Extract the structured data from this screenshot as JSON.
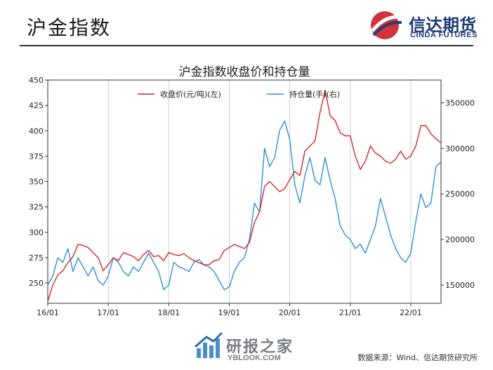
{
  "page": {
    "title": "沪金指数",
    "source": "数据来源：Wind、信达期货研究所"
  },
  "logo": {
    "cn": "信达期货",
    "en": "CINDA FUTURES"
  },
  "watermark": {
    "cn": "研报之家",
    "en": "YBLOOK.COM"
  },
  "colors": {
    "red": "#d62728",
    "blue": "#2e8fd8",
    "logo_blue": "#1f3e78",
    "logo_red": "#d0343a"
  },
  "chart_data": {
    "type": "line",
    "title": "沪金指数收盘价和持仓量",
    "x_ticks": [
      "16/01",
      "17/01",
      "18/01",
      "19/01",
      "20/01",
      "21/01",
      "22/01"
    ],
    "x_range": [
      "2016/01",
      "2022/07"
    ],
    "grid": {
      "vertical": true,
      "horizontal": false
    },
    "legend_position": "top-center",
    "y_left": {
      "min": 230,
      "max": 450,
      "ticks": [
        250,
        275,
        300,
        325,
        350,
        375,
        400,
        425,
        450
      ]
    },
    "y_right": {
      "min": 130000,
      "max": 375000,
      "ticks": [
        "150000",
        "200000",
        "250000",
        "300000",
        "350000"
      ]
    },
    "series": [
      {
        "name": "收盘价(元/吨)(左)",
        "axis": "left",
        "color": "#d62728",
        "points": [
          [
            "2016/01",
            232
          ],
          [
            "2016/02",
            248
          ],
          [
            "2016/03",
            258
          ],
          [
            "2016/04",
            262
          ],
          [
            "2016/05",
            270
          ],
          [
            "2016/06",
            276
          ],
          [
            "2016/07",
            288
          ],
          [
            "2016/08",
            287
          ],
          [
            "2016/09",
            285
          ],
          [
            "2016/10",
            280
          ],
          [
            "2016/11",
            275
          ],
          [
            "2016/12",
            262
          ],
          [
            "2017/01",
            268
          ],
          [
            "2017/02",
            275
          ],
          [
            "2017/03",
            272
          ],
          [
            "2017/04",
            280
          ],
          [
            "2017/05",
            278
          ],
          [
            "2017/06",
            276
          ],
          [
            "2017/07",
            272
          ],
          [
            "2017/08",
            278
          ],
          [
            "2017/09",
            282
          ],
          [
            "2017/10",
            276
          ],
          [
            "2017/11",
            277
          ],
          [
            "2017/12",
            272
          ],
          [
            "2018/01",
            280
          ],
          [
            "2018/02",
            278
          ],
          [
            "2018/03",
            277
          ],
          [
            "2018/04",
            279
          ],
          [
            "2018/05",
            275
          ],
          [
            "2018/06",
            272
          ],
          [
            "2018/07",
            270
          ],
          [
            "2018/08",
            268
          ],
          [
            "2018/09",
            268
          ],
          [
            "2018/10",
            272
          ],
          [
            "2018/11",
            273
          ],
          [
            "2018/12",
            282
          ],
          [
            "2019/01",
            285
          ],
          [
            "2019/02",
            288
          ],
          [
            "2019/03",
            286
          ],
          [
            "2019/04",
            284
          ],
          [
            "2019/05",
            290
          ],
          [
            "2019/06",
            310
          ],
          [
            "2019/07",
            320
          ],
          [
            "2019/08",
            345
          ],
          [
            "2019/09",
            350
          ],
          [
            "2019/10",
            345
          ],
          [
            "2019/11",
            340
          ],
          [
            "2019/12",
            343
          ],
          [
            "2020/01",
            352
          ],
          [
            "2020/02",
            360
          ],
          [
            "2020/03",
            356
          ],
          [
            "2020/04",
            380
          ],
          [
            "2020/05",
            385
          ],
          [
            "2020/06",
            390
          ],
          [
            "2020/07",
            418
          ],
          [
            "2020/08",
            440
          ],
          [
            "2020/09",
            415
          ],
          [
            "2020/10",
            410
          ],
          [
            "2020/11",
            398
          ],
          [
            "2020/12",
            395
          ],
          [
            "2021/01",
            395
          ],
          [
            "2021/02",
            375
          ],
          [
            "2021/03",
            362
          ],
          [
            "2021/04",
            370
          ],
          [
            "2021/05",
            385
          ],
          [
            "2021/06",
            378
          ],
          [
            "2021/07",
            375
          ],
          [
            "2021/08",
            370
          ],
          [
            "2021/09",
            368
          ],
          [
            "2021/10",
            372
          ],
          [
            "2021/11",
            380
          ],
          [
            "2021/12",
            372
          ],
          [
            "2022/01",
            375
          ],
          [
            "2022/02",
            385
          ],
          [
            "2022/03",
            405
          ],
          [
            "2022/04",
            405
          ],
          [
            "2022/05",
            397
          ],
          [
            "2022/06",
            392
          ],
          [
            "2022/07",
            388
          ]
        ]
      },
      {
        "name": "持仓量(手)(右)",
        "axis": "right",
        "color": "#2e8fd8",
        "points": [
          [
            "2016/01",
            150000
          ],
          [
            "2016/02",
            160000
          ],
          [
            "2016/03",
            180000
          ],
          [
            "2016/04",
            175000
          ],
          [
            "2016/05",
            190000
          ],
          [
            "2016/06",
            165000
          ],
          [
            "2016/07",
            180000
          ],
          [
            "2016/08",
            170000
          ],
          [
            "2016/09",
            160000
          ],
          [
            "2016/10",
            170000
          ],
          [
            "2016/11",
            155000
          ],
          [
            "2016/12",
            150000
          ],
          [
            "2017/01",
            160000
          ],
          [
            "2017/02",
            180000
          ],
          [
            "2017/03",
            175000
          ],
          [
            "2017/04",
            165000
          ],
          [
            "2017/05",
            160000
          ],
          [
            "2017/06",
            170000
          ],
          [
            "2017/07",
            165000
          ],
          [
            "2017/08",
            175000
          ],
          [
            "2017/09",
            185000
          ],
          [
            "2017/10",
            175000
          ],
          [
            "2017/11",
            165000
          ],
          [
            "2017/12",
            145000
          ],
          [
            "2018/01",
            150000
          ],
          [
            "2018/02",
            175000
          ],
          [
            "2018/03",
            170000
          ],
          [
            "2018/04",
            168000
          ],
          [
            "2018/05",
            165000
          ],
          [
            "2018/06",
            175000
          ],
          [
            "2018/07",
            178000
          ],
          [
            "2018/08",
            172000
          ],
          [
            "2018/09",
            170000
          ],
          [
            "2018/10",
            165000
          ],
          [
            "2018/11",
            155000
          ],
          [
            "2018/12",
            145000
          ],
          [
            "2019/01",
            148000
          ],
          [
            "2019/02",
            165000
          ],
          [
            "2019/03",
            175000
          ],
          [
            "2019/04",
            180000
          ],
          [
            "2019/05",
            200000
          ],
          [
            "2019/06",
            240000
          ],
          [
            "2019/07",
            230000
          ],
          [
            "2019/08",
            300000
          ],
          [
            "2019/09",
            280000
          ],
          [
            "2019/10",
            290000
          ],
          [
            "2019/11",
            320000
          ],
          [
            "2019/12",
            330000
          ],
          [
            "2020/01",
            310000
          ],
          [
            "2020/02",
            260000
          ],
          [
            "2020/03",
            240000
          ],
          [
            "2020/04",
            270000
          ],
          [
            "2020/05",
            290000
          ],
          [
            "2020/06",
            265000
          ],
          [
            "2020/07",
            260000
          ],
          [
            "2020/08",
            290000
          ],
          [
            "2020/09",
            265000
          ],
          [
            "2020/10",
            245000
          ],
          [
            "2020/11",
            215000
          ],
          [
            "2020/12",
            205000
          ],
          [
            "2021/01",
            200000
          ],
          [
            "2021/02",
            190000
          ],
          [
            "2021/03",
            195000
          ],
          [
            "2021/04",
            185000
          ],
          [
            "2021/05",
            200000
          ],
          [
            "2021/06",
            215000
          ],
          [
            "2021/07",
            245000
          ],
          [
            "2021/08",
            225000
          ],
          [
            "2021/09",
            205000
          ],
          [
            "2021/10",
            190000
          ],
          [
            "2021/11",
            180000
          ],
          [
            "2021/12",
            175000
          ],
          [
            "2022/01",
            185000
          ],
          [
            "2022/02",
            220000
          ],
          [
            "2022/03",
            250000
          ],
          [
            "2022/04",
            235000
          ],
          [
            "2022/05",
            240000
          ],
          [
            "2022/06",
            280000
          ],
          [
            "2022/07",
            285000
          ]
        ]
      }
    ]
  }
}
